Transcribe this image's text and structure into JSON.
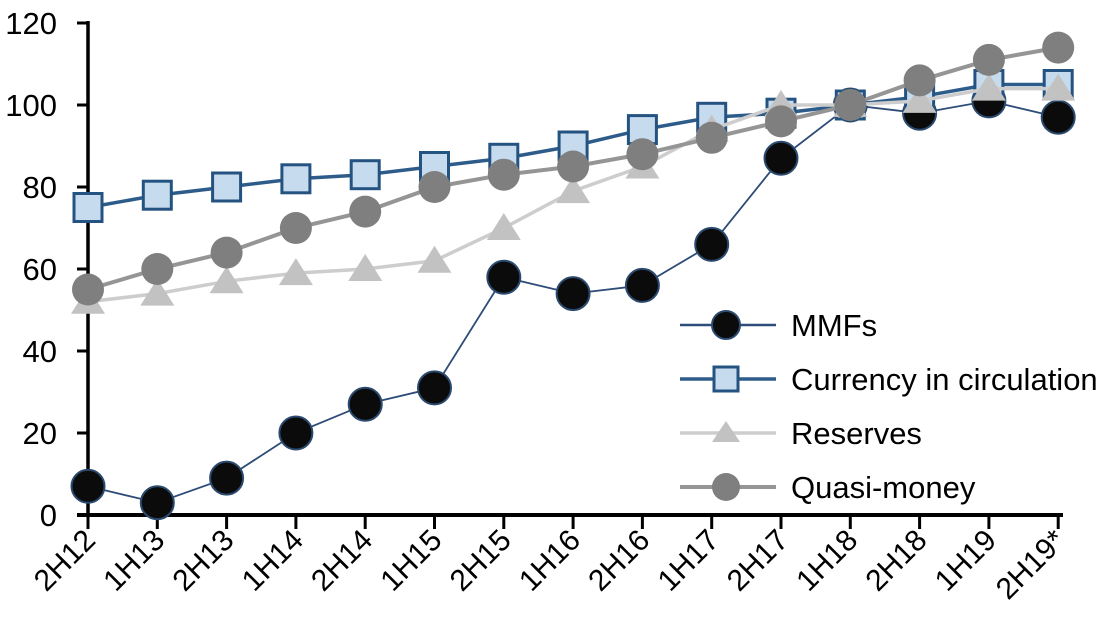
{
  "chart_data": {
    "type": "line",
    "title": "",
    "xlabel": "",
    "ylabel": "",
    "grid": false,
    "legend_position": "inside lower right",
    "categories": [
      "2H12",
      "1H13",
      "2H13",
      "1H14",
      "2H14",
      "1H15",
      "2H15",
      "1H16",
      "2H16",
      "1H17",
      "2H17",
      "1H18",
      "2H18",
      "1H19",
      "2H19*"
    ],
    "y_axis": {
      "min": 0,
      "max": 120,
      "tick_interval": 20,
      "tick_labels": [
        "0",
        "20",
        "40",
        "60",
        "80",
        "100",
        "120"
      ]
    },
    "series": [
      {
        "name": "MMFs",
        "marker": "circle",
        "marker_color": "#0b0b0b",
        "marker_stroke": "#2b4a70",
        "marker_stroke_width": 2,
        "marker_size": 16.5,
        "line_color": "#2e4c78",
        "line_width": 1.8,
        "values": [
          7,
          3,
          9,
          20,
          27,
          31,
          58,
          54,
          56,
          66,
          87,
          100,
          98,
          101,
          97
        ]
      },
      {
        "name": "Currency in circulation",
        "marker": "square",
        "marker_color": "#c7dbee",
        "marker_stroke": "#255381",
        "marker_stroke_width": 3,
        "marker_size": 15,
        "line_color": "#2e5c8a",
        "line_width": 3.5,
        "values": [
          75,
          78,
          80,
          82,
          83,
          85,
          87,
          90,
          94,
          97,
          98,
          100,
          102,
          105,
          105
        ]
      },
      {
        "name": "Reserves",
        "marker": "triangle",
        "marker_color": "#c2c2c2",
        "marker_stroke": "none",
        "marker_stroke_width": 0,
        "marker_size": 17,
        "line_color": "#cdcdcd",
        "line_width": 3.5,
        "values": [
          52,
          54,
          57,
          59,
          60,
          62,
          70,
          79,
          85,
          94,
          100,
          100,
          101,
          104,
          104
        ]
      },
      {
        "name": "Quasi-money",
        "marker": "circle",
        "marker_color": "#7f7f7f",
        "marker_stroke": "none",
        "marker_stroke_width": 0,
        "marker_size": 16,
        "line_color": "#959595",
        "line_width": 4,
        "values": [
          55,
          60,
          64,
          70,
          74,
          80,
          83,
          85,
          88,
          92,
          96,
          100,
          106,
          111,
          114
        ]
      }
    ]
  }
}
